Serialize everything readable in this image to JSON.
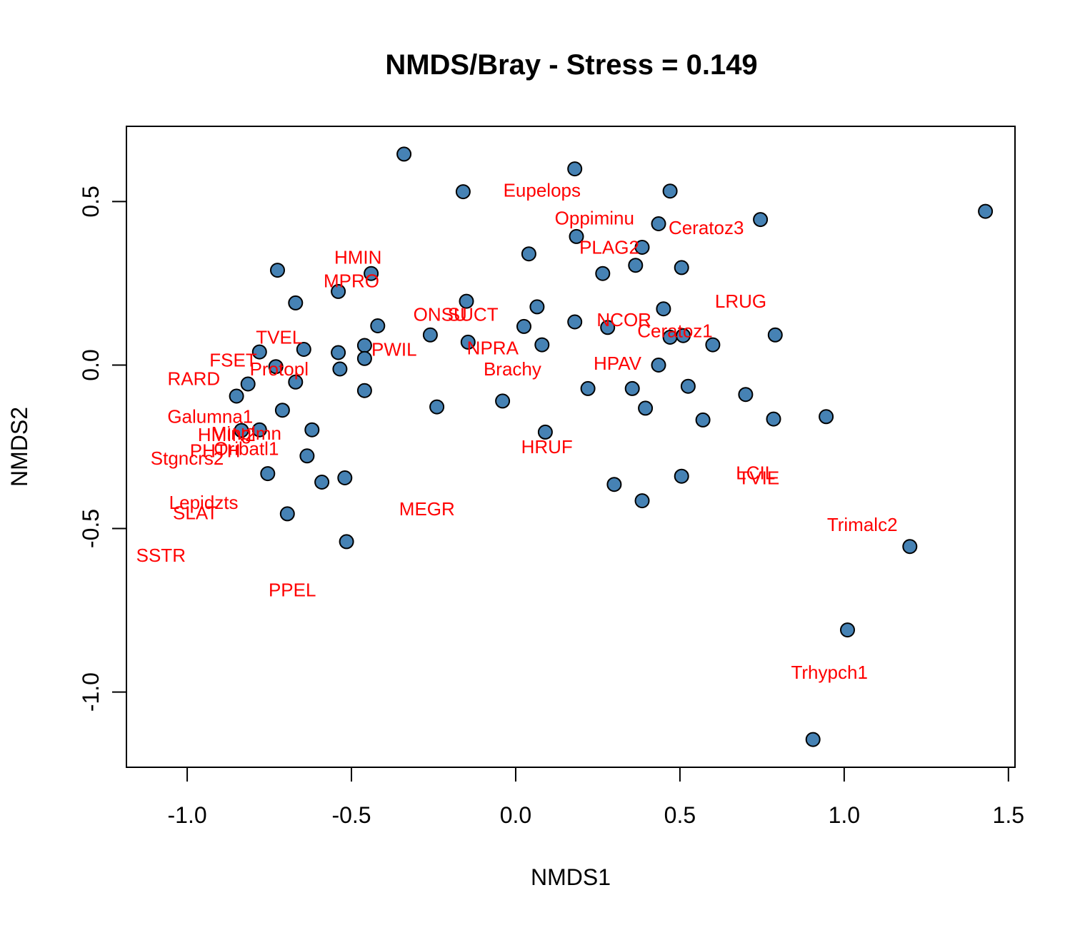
{
  "chart_data": {
    "type": "scatter",
    "title": "NMDS/Bray - Stress = 0.149",
    "xlabel": "NMDS1",
    "ylabel": "NMDS2",
    "xlim": [
      -1.185,
      1.52
    ],
    "ylim": [
      -1.23,
      0.73
    ],
    "xticks": [
      -1.0,
      -0.5,
      0.0,
      0.5,
      1.0,
      1.5
    ],
    "xtick_labels": [
      "-1.0",
      "-0.5",
      "0.0",
      "0.5",
      "1.0",
      "1.5"
    ],
    "yticks": [
      -1.0,
      -0.5,
      0.0,
      0.5
    ],
    "ytick_labels": [
      "-1.0",
      "-0.5",
      "0.0",
      "0.5"
    ],
    "grid": false,
    "point_color": "#4682b4",
    "label_color": "#ff0000",
    "sites": [
      {
        "x": -0.34,
        "y": 0.645
      },
      {
        "x": -0.16,
        "y": 0.53
      },
      {
        "x": 0.18,
        "y": 0.6
      },
      {
        "x": 0.47,
        "y": 0.532
      },
      {
        "x": 0.435,
        "y": 0.432
      },
      {
        "x": 0.745,
        "y": 0.445
      },
      {
        "x": 1.43,
        "y": 0.47
      },
      {
        "x": 0.185,
        "y": 0.393
      },
      {
        "x": 0.385,
        "y": 0.36
      },
      {
        "x": 0.04,
        "y": 0.34
      },
      {
        "x": -0.725,
        "y": 0.29
      },
      {
        "x": -0.44,
        "y": 0.28
      },
      {
        "x": 0.265,
        "y": 0.28
      },
      {
        "x": 0.365,
        "y": 0.305
      },
      {
        "x": 0.505,
        "y": 0.298
      },
      {
        "x": -0.67,
        "y": 0.19
      },
      {
        "x": -0.54,
        "y": 0.225
      },
      {
        "x": -0.15,
        "y": 0.195
      },
      {
        "x": 0.065,
        "y": 0.178
      },
      {
        "x": 0.45,
        "y": 0.172
      },
      {
        "x": -0.42,
        "y": 0.12
      },
      {
        "x": -0.26,
        "y": 0.092
      },
      {
        "x": 0.025,
        "y": 0.118
      },
      {
        "x": 0.18,
        "y": 0.132
      },
      {
        "x": 0.28,
        "y": 0.115
      },
      {
        "x": 0.47,
        "y": 0.085
      },
      {
        "x": 0.51,
        "y": 0.09
      },
      {
        "x": 0.79,
        "y": 0.092
      },
      {
        "x": 0.6,
        "y": 0.062
      },
      {
        "x": -0.145,
        "y": 0.07
      },
      {
        "x": 0.08,
        "y": 0.062
      },
      {
        "x": -0.78,
        "y": 0.04
      },
      {
        "x": -0.645,
        "y": 0.048
      },
      {
        "x": -0.54,
        "y": 0.038
      },
      {
        "x": -0.46,
        "y": 0.06
      },
      {
        "x": -0.46,
        "y": 0.02
      },
      {
        "x": -0.535,
        "y": -0.012
      },
      {
        "x": -0.73,
        "y": -0.005
      },
      {
        "x": 0.435,
        "y": 0.0
      },
      {
        "x": -0.815,
        "y": -0.058
      },
      {
        "x": -0.67,
        "y": -0.052
      },
      {
        "x": -0.85,
        "y": -0.095
      },
      {
        "x": -0.46,
        "y": -0.078
      },
      {
        "x": 0.22,
        "y": -0.072
      },
      {
        "x": 0.355,
        "y": -0.072
      },
      {
        "x": 0.525,
        "y": -0.065
      },
      {
        "x": 0.7,
        "y": -0.09
      },
      {
        "x": -0.24,
        "y": -0.128
      },
      {
        "x": -0.04,
        "y": -0.11
      },
      {
        "x": 0.395,
        "y": -0.132
      },
      {
        "x": -0.71,
        "y": -0.138
      },
      {
        "x": 0.57,
        "y": -0.168
      },
      {
        "x": 0.785,
        "y": -0.165
      },
      {
        "x": 0.945,
        "y": -0.158
      },
      {
        "x": -0.835,
        "y": -0.2
      },
      {
        "x": -0.78,
        "y": -0.198
      },
      {
        "x": -0.62,
        "y": -0.198
      },
      {
        "x": 0.09,
        "y": -0.205
      },
      {
        "x": -0.635,
        "y": -0.278
      },
      {
        "x": -0.755,
        "y": -0.332
      },
      {
        "x": -0.59,
        "y": -0.358
      },
      {
        "x": -0.52,
        "y": -0.345
      },
      {
        "x": 0.505,
        "y": -0.34
      },
      {
        "x": 0.3,
        "y": -0.365
      },
      {
        "x": 0.385,
        "y": -0.415
      },
      {
        "x": -0.695,
        "y": -0.455
      },
      {
        "x": -0.515,
        "y": -0.54
      },
      {
        "x": 1.2,
        "y": -0.555
      },
      {
        "x": 1.01,
        "y": -0.81
      },
      {
        "x": 0.905,
        "y": -1.145
      }
    ],
    "species": [
      {
        "label": "Eupelops",
        "x": 0.08,
        "y": 0.535
      },
      {
        "label": "Oppiminu",
        "x": 0.24,
        "y": 0.45
      },
      {
        "label": "Ceratoz3",
        "x": 0.58,
        "y": 0.42
      },
      {
        "label": "PLAG2",
        "x": 0.285,
        "y": 0.36
      },
      {
        "label": "HMIN",
        "x": -0.48,
        "y": 0.33
      },
      {
        "label": "MPRO",
        "x": -0.5,
        "y": 0.258
      },
      {
        "label": "LRUG",
        "x": 0.685,
        "y": 0.195
      },
      {
        "label": "ONSU",
        "x": -0.23,
        "y": 0.155
      },
      {
        "label": "SUCT",
        "x": -0.13,
        "y": 0.155
      },
      {
        "label": "NCOR",
        "x": 0.33,
        "y": 0.138
      },
      {
        "label": "Ceratoz1",
        "x": 0.485,
        "y": 0.105
      },
      {
        "label": "TVEL",
        "x": -0.72,
        "y": 0.085
      },
      {
        "label": "PWIL",
        "x": -0.37,
        "y": 0.048
      },
      {
        "label": "NPRA",
        "x": -0.07,
        "y": 0.052
      },
      {
        "label": "FSET",
        "x": -0.86,
        "y": 0.015
      },
      {
        "label": "HPAV",
        "x": 0.31,
        "y": 0.005
      },
      {
        "label": "Protopl",
        "x": -0.72,
        "y": -0.012
      },
      {
        "label": "Brachy",
        "x": -0.01,
        "y": -0.012
      },
      {
        "label": "RARD",
        "x": -0.98,
        "y": -0.042
      },
      {
        "label": "Galumna1",
        "x": -0.93,
        "y": -0.157
      },
      {
        "label": "HMIN2",
        "x": -0.88,
        "y": -0.213
      },
      {
        "label": "Minglmn",
        "x": -0.82,
        "y": -0.208
      },
      {
        "label": "Oribatl1",
        "x": -0.82,
        "y": -0.255
      },
      {
        "label": "PHTH",
        "x": -0.915,
        "y": -0.262
      },
      {
        "label": "Stgncrs2",
        "x": -1.0,
        "y": -0.285
      },
      {
        "label": "HRUF",
        "x": 0.095,
        "y": -0.25
      },
      {
        "label": "LCIL",
        "x": 0.73,
        "y": -0.33
      },
      {
        "label": "TVIE",
        "x": 0.74,
        "y": -0.345
      },
      {
        "label": "Lepidzts",
        "x": -0.95,
        "y": -0.42
      },
      {
        "label": "SLAT",
        "x": -0.975,
        "y": -0.452
      },
      {
        "label": "MEGR",
        "x": -0.27,
        "y": -0.44
      },
      {
        "label": "Trimalc2",
        "x": 1.055,
        "y": -0.488
      },
      {
        "label": "SSTR",
        "x": -1.08,
        "y": -0.582
      },
      {
        "label": "PPEL",
        "x": -0.68,
        "y": -0.688
      },
      {
        "label": "Trhypch1",
        "x": 0.955,
        "y": -0.94
      }
    ]
  }
}
